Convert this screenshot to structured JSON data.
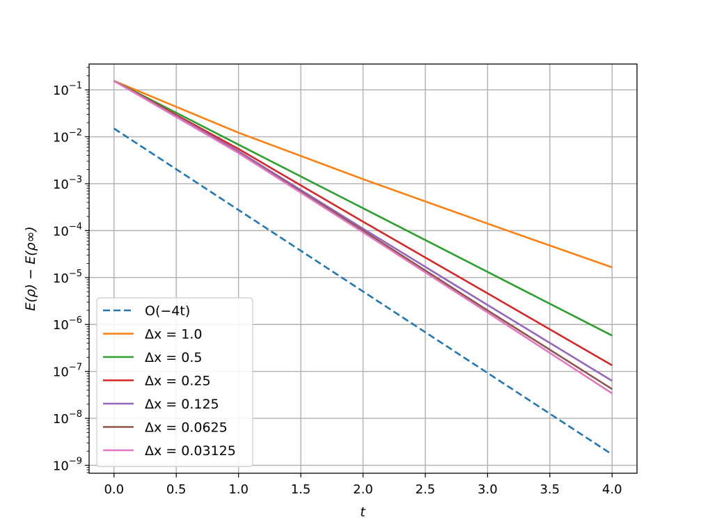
{
  "chart_data": {
    "type": "line",
    "xlabel": "t",
    "ylabel": "E(ρ) − E(ρ∞)",
    "xlim": [
      -0.2,
      4.2
    ],
    "ylim_log10": [
      -9.17,
      -0.45
    ],
    "yscale": "log",
    "grid": true,
    "legend_position": "lower-left",
    "x_ticks": [
      {
        "value": 0.0,
        "label": "0.0"
      },
      {
        "value": 0.5,
        "label": "0.5"
      },
      {
        "value": 1.0,
        "label": "1.0"
      },
      {
        "value": 1.5,
        "label": "1.5"
      },
      {
        "value": 2.0,
        "label": "2.0"
      },
      {
        "value": 2.5,
        "label": "2.5"
      },
      {
        "value": 3.0,
        "label": "3.0"
      },
      {
        "value": 3.5,
        "label": "3.5"
      },
      {
        "value": 4.0,
        "label": "4.0"
      }
    ],
    "y_ticks": [
      {
        "exp": -1,
        "mantissa": "10",
        "power": "−1"
      },
      {
        "exp": -2,
        "mantissa": "10",
        "power": "−2"
      },
      {
        "exp": -3,
        "mantissa": "10",
        "power": "−3"
      },
      {
        "exp": -4,
        "mantissa": "10",
        "power": "−4"
      },
      {
        "exp": -5,
        "mantissa": "10",
        "power": "−5"
      },
      {
        "exp": -6,
        "mantissa": "10",
        "power": "−6"
      },
      {
        "exp": -7,
        "mantissa": "10",
        "power": "−7"
      },
      {
        "exp": -8,
        "mantissa": "10",
        "power": "−8"
      },
      {
        "exp": -9,
        "mantissa": "10",
        "power": "−9"
      }
    ],
    "series": [
      {
        "name": "O(−4t)",
        "color": "#1f77b4",
        "dashed": true,
        "points": [
          [
            0,
            0.015
          ],
          [
            4,
            1.7e-09
          ]
        ]
      },
      {
        "name": "Δx = 1.0",
        "color": "#ff7f0e",
        "dashed": false,
        "points": [
          [
            0,
            0.155
          ],
          [
            1,
            0.0122
          ],
          [
            2,
            0.00125
          ],
          [
            3,
            0.000141
          ],
          [
            4,
            1.65e-05
          ]
        ]
      },
      {
        "name": "Δx = 0.5",
        "color": "#2ca02c",
        "dashed": false,
        "points": [
          [
            0,
            0.155
          ],
          [
            1,
            0.0068
          ],
          [
            2,
            0.0003
          ],
          [
            3,
            1.32e-05
          ],
          [
            4,
            5.8e-07
          ]
        ]
      },
      {
        "name": "Δx = 0.25",
        "color": "#d62728",
        "dashed": false,
        "points": [
          [
            0,
            0.155
          ],
          [
            1,
            0.0055
          ],
          [
            2,
            0.000155
          ],
          [
            3,
            4.6e-06
          ],
          [
            4,
            1.35e-07
          ]
        ]
      },
      {
        "name": "Δx = 0.125",
        "color": "#9467bd",
        "dashed": false,
        "points": [
          [
            0,
            0.155
          ],
          [
            1,
            0.0049
          ],
          [
            2,
            0.00011
          ],
          [
            3,
            2.6e-06
          ],
          [
            4,
            6.3e-08
          ]
        ]
      },
      {
        "name": "Δx = 0.0625",
        "color": "#8c564b",
        "dashed": false,
        "points": [
          [
            0,
            0.155
          ],
          [
            1,
            0.0046
          ],
          [
            2,
            0.0001
          ],
          [
            3,
            2e-06
          ],
          [
            4,
            4.2e-08
          ]
        ]
      },
      {
        "name": "Δx = 0.03125",
        "color": "#e377c2",
        "dashed": false,
        "points": [
          [
            0,
            0.155
          ],
          [
            1,
            0.0045
          ],
          [
            2,
            9.2e-05
          ],
          [
            3,
            1.8e-06
          ],
          [
            4,
            3.4e-08
          ]
        ]
      }
    ]
  }
}
